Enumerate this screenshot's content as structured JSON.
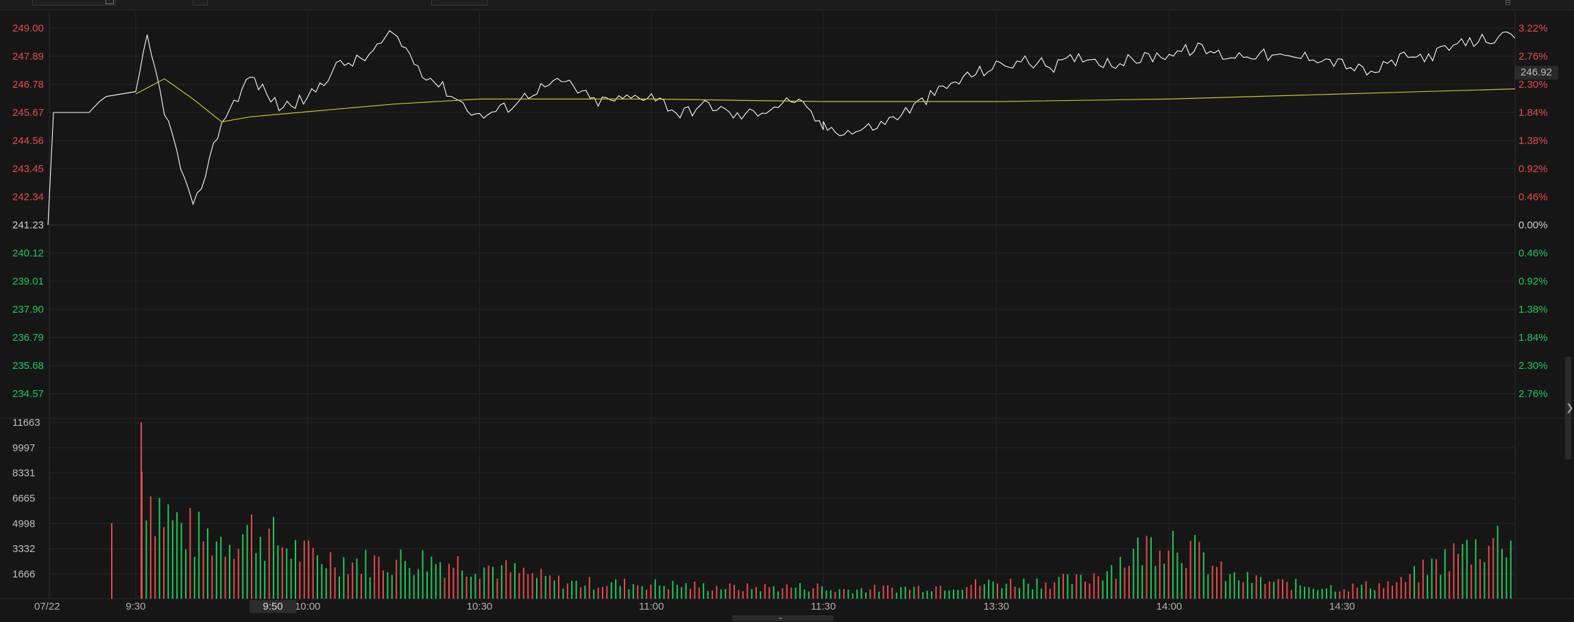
{
  "topbar": {
    "label_1": "",
    "label_2": "",
    "label_3": "",
    "label_4": "",
    "icon": "settings-icon"
  },
  "current_price": "246.92",
  "hover_time": "9:50",
  "chart_data": {
    "type": "line",
    "title": "",
    "date": "07/22",
    "base_price": 241.23,
    "ylim": [
      234.57,
      249.0
    ],
    "price_ticks": {
      "up": [
        "249.00",
        "247.89",
        "246.78",
        "245.67",
        "244.56",
        "243.45",
        "242.34"
      ],
      "base": "241.23",
      "down": [
        "240.12",
        "239.01",
        "237.90",
        "236.79",
        "235.68",
        "234.57"
      ]
    },
    "pct_ticks": {
      "up": [
        "3.22%",
        "2.76%",
        "2.30%",
        "1.84%",
        "1.38%",
        "0.92%",
        "0.46%"
      ],
      "base": "0.00%",
      "down": [
        "0.46%",
        "0.92%",
        "1.38%",
        "1.84%",
        "2.30%",
        "2.76%"
      ]
    },
    "volume_ticks": [
      "11663",
      "9997",
      "8331",
      "6665",
      "4998",
      "3332",
      "1666"
    ],
    "volume_max": 11663,
    "time_labels": [
      "9:30",
      "10:00",
      "10:30",
      "11:00",
      "11:30",
      "13:30",
      "14:00",
      "14:30"
    ],
    "grid": true,
    "colors": {
      "up": "#e84a4a",
      "down": "#1ec95a",
      "neutral": "#d0d0d0",
      "price_line": "#ffffff",
      "avg_line": "#c8c832",
      "grid": "#262626"
    },
    "series": [
      {
        "name": "",
        "x": [
          "9:30",
          "9:32",
          "9:35",
          "9:40",
          "9:45",
          "9:50",
          "9:55",
          "10:00",
          "10:05",
          "10:10",
          "10:15",
          "10:20",
          "10:25",
          "10:30",
          "10:35",
          "10:40",
          "10:45",
          "10:50",
          "10:55",
          "11:00",
          "11:05",
          "11:10",
          "11:15",
          "11:20",
          "11:25",
          "11:30",
          "13:00",
          "13:05",
          "13:10",
          "13:15",
          "13:20",
          "13:25",
          "13:30",
          "13:35",
          "13:40",
          "13:45",
          "13:50",
          "13:55",
          "14:00",
          "14:05",
          "14:10",
          "14:15",
          "14:20",
          "14:25",
          "14:30",
          "14:35",
          "14:40",
          "14:45",
          "14:50",
          "14:55",
          "15:00"
        ],
        "values": [
          246.3,
          248.6,
          245.8,
          241.8,
          245.3,
          247.1,
          245.9,
          246.2,
          247.5,
          247.8,
          248.8,
          247.3,
          246.4,
          245.5,
          245.9,
          246.6,
          246.9,
          246.1,
          246.2,
          246.4,
          245.6,
          246.0,
          245.5,
          245.8,
          246.2,
          245.1,
          245.1,
          244.9,
          245.2,
          245.8,
          246.5,
          247.1,
          247.5,
          247.7,
          247.5,
          247.9,
          247.6,
          247.8,
          248.0,
          248.2,
          247.9,
          248.0,
          247.8,
          247.9,
          247.6,
          247.2,
          247.8,
          247.9,
          248.3,
          248.6,
          248.6
        ]
      },
      {
        "name": "",
        "x": [
          "9:30",
          "9:35",
          "9:40",
          "9:45",
          "9:50",
          "10:00",
          "10:15",
          "10:30",
          "11:00",
          "11:30",
          "13:00",
          "13:30",
          "14:00",
          "14:30",
          "15:00"
        ],
        "values": [
          246.4,
          247.0,
          246.2,
          245.3,
          245.5,
          245.7,
          246.0,
          246.2,
          246.2,
          246.1,
          246.1,
          246.1,
          246.2,
          246.4,
          246.6
        ]
      }
    ],
    "volume_series": {
      "x": [
        "9:30",
        "9:33",
        "9:36",
        "9:40",
        "9:45",
        "9:50",
        "10:00",
        "10:10",
        "10:20",
        "10:30",
        "10:45",
        "11:00",
        "11:15",
        "11:30",
        "13:00",
        "13:15",
        "13:30",
        "13:45",
        "14:00",
        "14:10",
        "14:20",
        "14:30",
        "14:40",
        "14:50",
        "15:00"
      ],
      "values": [
        11663,
        8331,
        6600,
        5200,
        4900,
        5700,
        3500,
        3000,
        3200,
        2800,
        1300,
        1200,
        900,
        1000,
        700,
        900,
        1300,
        1500,
        5300,
        1800,
        1200,
        900,
        1300,
        3800,
        5400
      ]
    }
  }
}
